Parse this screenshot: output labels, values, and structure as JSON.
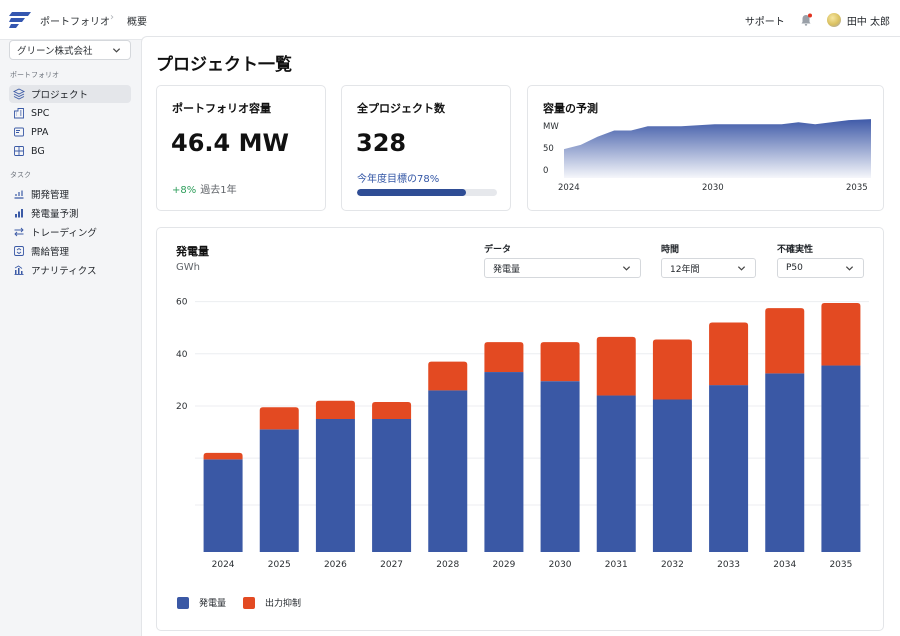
{
  "topbar": {
    "breadcrumb_root": "ポートフォリオ",
    "breadcrumb_current": "概要",
    "support_label": "サポート",
    "user_name": "田中 太郎"
  },
  "sidebar": {
    "org_selected": "グリーン株式会社",
    "section_portfolio": "ポートフォリオ",
    "portfolio_items": [
      {
        "label": "プロジェクト",
        "icon": "layers-icon"
      },
      {
        "label": "SPC",
        "icon": "building-icon"
      },
      {
        "label": "PPA",
        "icon": "contract-icon"
      },
      {
        "label": "BG",
        "icon": "grid-icon"
      }
    ],
    "section_tasks": "タスク",
    "task_items": [
      {
        "label": "開発管理",
        "icon": "development-icon"
      },
      {
        "label": "発電量予測",
        "icon": "forecast-bars-icon"
      },
      {
        "label": "トレーディング",
        "icon": "exchange-icon"
      },
      {
        "label": "需給管理",
        "icon": "balance-icon"
      },
      {
        "label": "アナリティクス",
        "icon": "analytics-icon"
      }
    ]
  },
  "page": {
    "title": "プロジェクト一覧"
  },
  "kpi": {
    "capacity": {
      "title": "ポートフォリオ容量",
      "value": "46.4 MW",
      "delta": "+8%",
      "delta_note": "過去1年"
    },
    "projects": {
      "title": "全プロジェクト数",
      "value": "328",
      "goal_text": "今年度目標の78%",
      "progress": 0.78
    },
    "forecast": {
      "title": "容量の予測",
      "unit": "MW",
      "y_ticks": [
        "50",
        "0"
      ],
      "x_ticks": [
        "2024",
        "2030",
        "2035"
      ],
      "series": [
        {
          "t": 0,
          "v": 28
        },
        {
          "t": 0.6,
          "v": 32
        },
        {
          "t": 1.2,
          "v": 40
        },
        {
          "t": 1.8,
          "v": 46
        },
        {
          "t": 2.4,
          "v": 46
        },
        {
          "t": 3,
          "v": 50
        },
        {
          "t": 4.2,
          "v": 50
        },
        {
          "t": 5.4,
          "v": 52
        },
        {
          "t": 6.6,
          "v": 52
        },
        {
          "t": 7.8,
          "v": 52
        },
        {
          "t": 8.4,
          "v": 54
        },
        {
          "t": 9,
          "v": 52
        },
        {
          "t": 10.2,
          "v": 56
        },
        {
          "t": 11,
          "v": 57
        }
      ]
    }
  },
  "generation": {
    "title": "発電量",
    "unit": "GWh",
    "filters": {
      "data_label": "データ",
      "data_value": "発電量",
      "time_label": "時間",
      "time_value": "12年間",
      "uncert_label": "不確実性",
      "uncert_value": "P50"
    },
    "legend": {
      "generation": "発電量",
      "curtailment": "出力抑制"
    }
  },
  "colors": {
    "generation": "#3a58a5",
    "curtailment": "#e34a22",
    "forecast_top": "#3f5aa8"
  },
  "chart_data": {
    "type": "bar",
    "stacked": true,
    "categories": [
      "2024",
      "2025",
      "2026",
      "2027",
      "2028",
      "2029",
      "2030",
      "2031",
      "2032",
      "2033",
      "2034",
      "2035"
    ],
    "y_ticks": [
      60,
      40,
      20
    ],
    "ylim": [
      -36,
      66
    ],
    "series": [
      {
        "name": "発電量",
        "values": [
          -0.5,
          11,
          15,
          15,
          26,
          33,
          29.5,
          24,
          22.5,
          28,
          32.5,
          35.5
        ]
      },
      {
        "name": "出力抑制",
        "values": [
          2.5,
          8.5,
          7,
          6.5,
          11,
          11.5,
          15,
          22.5,
          23,
          24,
          25,
          24
        ]
      }
    ],
    "legend_position": "bottom-left",
    "grid": true
  }
}
